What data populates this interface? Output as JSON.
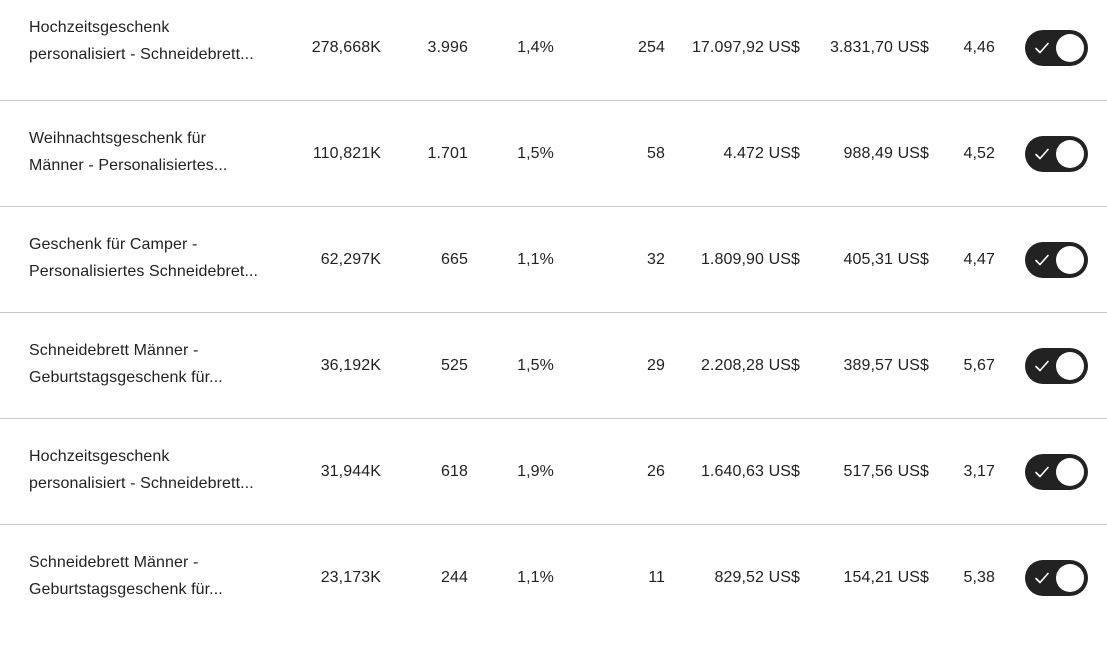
{
  "rows": [
    {
      "title_line1": "Hochzeitsgeschenk",
      "title_line2": "personalisiert - Schneidebrett...",
      "views": "278,668K",
      "visits": "3.996",
      "conversion": "1,4%",
      "orders": "254",
      "revenue": "17.097,92 US$",
      "spend": "3.831,70 US$",
      "roas": "4,46",
      "active": true
    },
    {
      "title_line1": "Weihnachtsgeschenk für",
      "title_line2": "Männer - Personalisiertes...",
      "views": "110,821K",
      "visits": "1.701",
      "conversion": "1,5%",
      "orders": "58",
      "revenue": "4.472 US$",
      "spend": "988,49 US$",
      "roas": "4,52",
      "active": true
    },
    {
      "title_line1": "Geschenk für Camper -",
      "title_line2": "Personalisiertes Schneidebret...",
      "views": "62,297K",
      "visits": "665",
      "conversion": "1,1%",
      "orders": "32",
      "revenue": "1.809,90 US$",
      "spend": "405,31 US$",
      "roas": "4,47",
      "active": true
    },
    {
      "title_line1": "Schneidebrett Männer -",
      "title_line2": "Geburtstagsgeschenk für...",
      "views": "36,192K",
      "visits": "525",
      "conversion": "1,5%",
      "orders": "29",
      "revenue": "2.208,28 US$",
      "spend": "389,57 US$",
      "roas": "5,67",
      "active": true
    },
    {
      "title_line1": "Hochzeitsgeschenk",
      "title_line2": "personalisiert - Schneidebrett...",
      "views": "31,944K",
      "visits": "618",
      "conversion": "1,9%",
      "orders": "26",
      "revenue": "1.640,63 US$",
      "spend": "517,56 US$",
      "roas": "3,17",
      "active": true
    },
    {
      "title_line1": "Schneidebrett Männer -",
      "title_line2": "Geburtstagsgeschenk für...",
      "views": "23,173K",
      "visits": "244",
      "conversion": "1,1%",
      "orders": "11",
      "revenue": "829,52 US$",
      "spend": "154,21 US$",
      "roas": "5,38",
      "active": true
    }
  ],
  "icons": {
    "toggle_check": "check-icon"
  },
  "colors": {
    "toggle_on": "#222222",
    "divider": "#c9c9c9",
    "text": "#222222"
  }
}
